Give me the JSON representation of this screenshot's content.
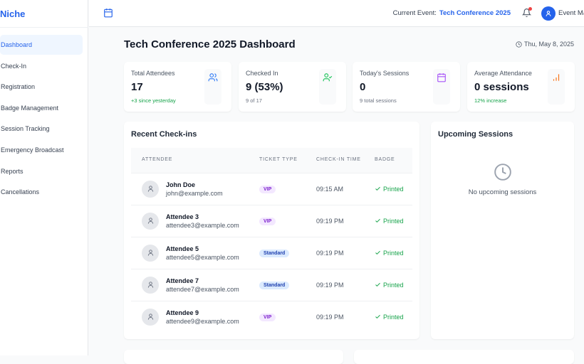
{
  "sidebar": {
    "logo": "Niche",
    "items": [
      {
        "label": "Dashboard",
        "active": true
      },
      {
        "label": "Check-In"
      },
      {
        "label": "Registration"
      },
      {
        "label": "Badge Management"
      },
      {
        "label": "Session Tracking"
      },
      {
        "label": "Emergency Broadcast"
      },
      {
        "label": "Reports"
      },
      {
        "label": "Cancellations"
      }
    ]
  },
  "header": {
    "current_event_label": "Current Event:",
    "current_event": "Tech Conference 2025",
    "user_name": "Event Manager"
  },
  "page": {
    "title": "Tech Conference 2025 Dashboard",
    "date": "Thu, May 8, 2025"
  },
  "stats": [
    {
      "label": "Total Attendees",
      "value": "17",
      "sub": "+3 since yesterday",
      "icon": "users-icon",
      "color": "#3b82f6"
    },
    {
      "label": "Checked In",
      "value": "9 (53%)",
      "sub": "9 of 17",
      "icon": "user-check-icon",
      "color": "#22c55e"
    },
    {
      "label": "Today's Sessions",
      "value": "0",
      "sub": "9 total sessions",
      "icon": "calendar-icon",
      "color": "#a855f7"
    },
    {
      "label": "Average Attendance",
      "value": "0 sessions",
      "sub": "12% increase",
      "icon": "bar-chart-icon",
      "color": "#f97316"
    }
  ],
  "checkins": {
    "title": "Recent Check-ins",
    "columns": [
      "ATTENDEE",
      "TICKET TYPE",
      "CHECK-IN TIME",
      "BADGE"
    ],
    "rows": [
      {
        "name": "John Doe",
        "email": "john@example.com",
        "ticket": "VIP",
        "time": "09:15 AM",
        "badge": "Printed"
      },
      {
        "name": "Attendee 3",
        "email": "attendee3@example.com",
        "ticket": "VIP",
        "time": "09:19 PM",
        "badge": "Printed"
      },
      {
        "name": "Attendee 5",
        "email": "attendee5@example.com",
        "ticket": "Standard",
        "time": "09:19 PM",
        "badge": "Printed"
      },
      {
        "name": "Attendee 7",
        "email": "attendee7@example.com",
        "ticket": "Standard",
        "time": "09:19 PM",
        "badge": "Printed"
      },
      {
        "name": "Attendee 9",
        "email": "attendee9@example.com",
        "ticket": "VIP",
        "time": "09:19 PM",
        "badge": "Printed"
      }
    ]
  },
  "upcoming": {
    "title": "Upcoming Sessions",
    "empty": "No upcoming sessions"
  }
}
